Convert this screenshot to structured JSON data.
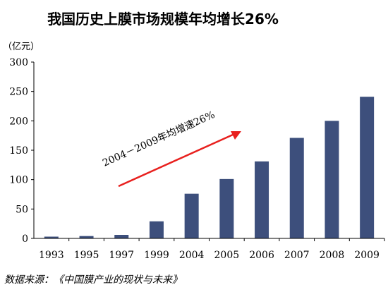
{
  "chart_data": {
    "type": "bar",
    "title": "我国历史上膜市场规模年均增长26%",
    "y_unit": "（亿元）",
    "categories": [
      "1993",
      "1995",
      "1997",
      "1999",
      "2004",
      "2005",
      "2006",
      "2007",
      "2008",
      "2009"
    ],
    "values": [
      3,
      4,
      6,
      29,
      76,
      101,
      131,
      171,
      200,
      241
    ],
    "ylim": [
      0,
      300
    ],
    "yticks": [
      0,
      50,
      100,
      150,
      200,
      250,
      300
    ],
    "grid": false,
    "bar_color": "#3d4f7c",
    "annotation": {
      "text": "2004－2009年均增速26%",
      "arrow_color": "#e8201e"
    },
    "source": "数据来源：《中国膜产业的现状与未来》"
  }
}
